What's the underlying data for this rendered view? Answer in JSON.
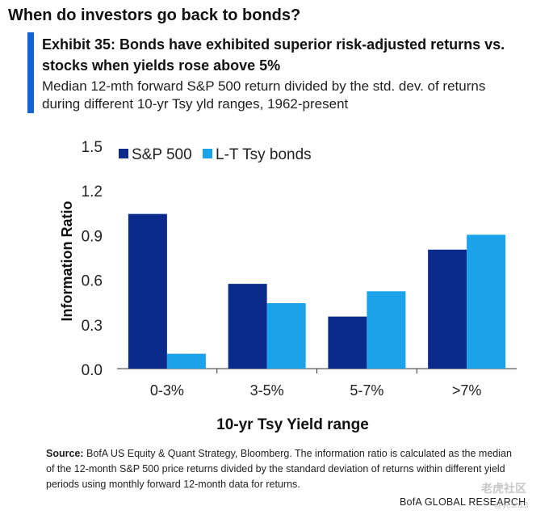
{
  "headline": "When do investors go back to bonds?",
  "exhibit": {
    "title": "Exhibit 35: Bonds have exhibited superior risk-adjusted returns vs. stocks when yields rose above 5%",
    "subtitle": "Median 12-mth forward S&P 500 return divided by the std. dev. of returns during different 10-yr Tsy yld ranges, 1962-present"
  },
  "chart_data": {
    "type": "bar",
    "categories": [
      "0-3%",
      "3-5%",
      "5-7%",
      ">7%"
    ],
    "series": [
      {
        "name": "S&P 500",
        "values": [
          1.04,
          0.57,
          0.35,
          0.8
        ],
        "color": "#0a2a8c"
      },
      {
        "name": "L-T Tsy bonds",
        "values": [
          0.1,
          0.44,
          0.52,
          0.9
        ],
        "color": "#1aa3e8"
      }
    ],
    "xlabel": "10-yr Tsy Yield range",
    "ylabel": "Information Ratio",
    "ylim": [
      0,
      1.5
    ],
    "yticks": [
      "0.0",
      "0.3",
      "0.6",
      "0.9",
      "1.2",
      "1.5"
    ],
    "grid": false,
    "legend_position": "top-left"
  },
  "source": {
    "label": "Source:",
    "text": "BofA US Equity & Quant Strategy, Bloomberg. The information ratio is calculated as the median of the 12-month S&P 500 price returns divided by the standard deviation of returns within different yield periods using monthly forward 12-month data for returns."
  },
  "footer": "BofA GLOBAL RESEARCH",
  "watermark": {
    "text": "老虎社区",
    "sub": "@yesh13"
  }
}
